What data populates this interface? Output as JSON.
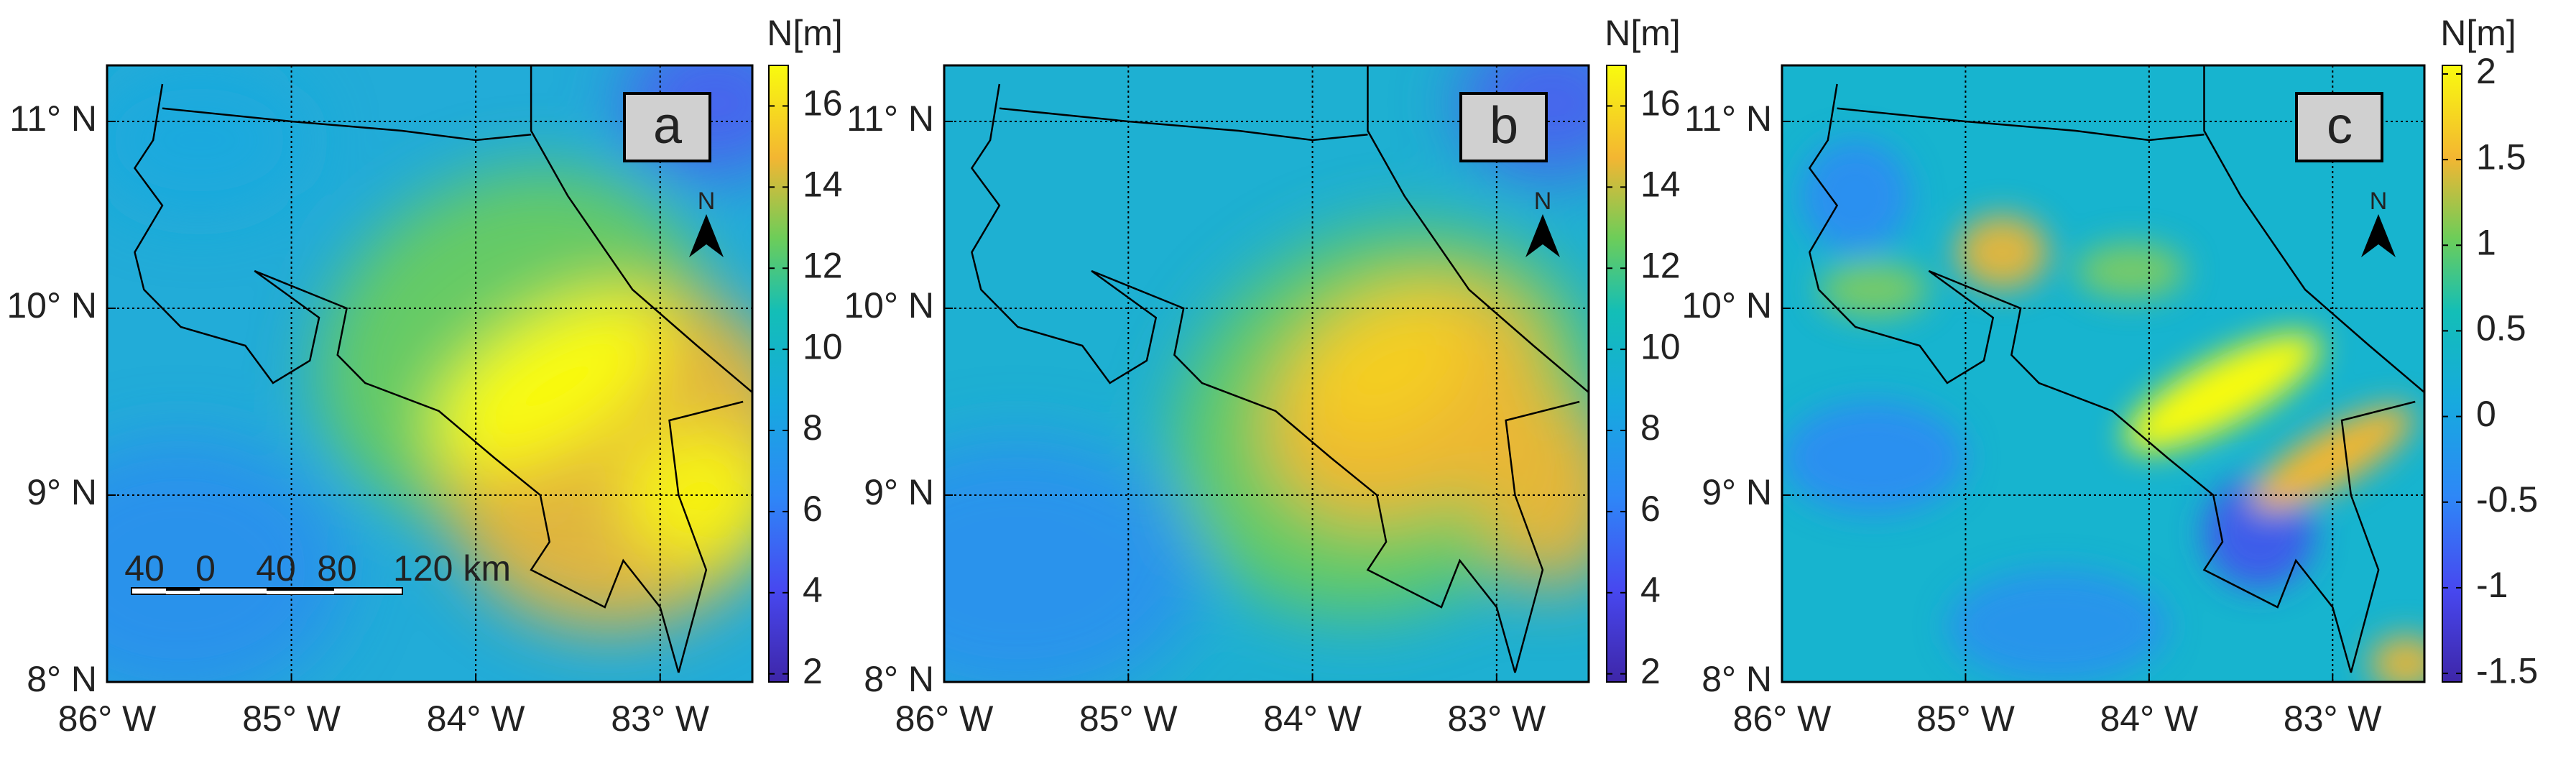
{
  "figure": {
    "xlim": [
      -86,
      -82.5
    ],
    "ylim": [
      8,
      11.3
    ],
    "xticks": [
      {
        "value": -86,
        "label": "86° W"
      },
      {
        "value": -85,
        "label": "85° W"
      },
      {
        "value": -84,
        "label": "84° W"
      },
      {
        "value": -83,
        "label": "83° W"
      }
    ],
    "yticks": [
      {
        "value": 8,
        "label": "8° N"
      },
      {
        "value": 9,
        "label": "9° N"
      },
      {
        "value": 10,
        "label": "10° N"
      },
      {
        "value": 11,
        "label": "11° N"
      }
    ],
    "north": "N",
    "scale_bar": {
      "labels": [
        "40",
        "0",
        "40",
        "80",
        "120 km"
      ]
    },
    "panels": [
      {
        "label": "a",
        "colorbar": {
          "title": "N[m]",
          "lim": [
            1.8,
            17
          ],
          "ticks": [
            2,
            4,
            6,
            8,
            10,
            12,
            14,
            16
          ]
        }
      },
      {
        "label": "b",
        "colorbar": {
          "title": "N[m]",
          "lim": [
            1.8,
            17
          ],
          "ticks": [
            2,
            4,
            6,
            8,
            10,
            12,
            14,
            16
          ]
        }
      },
      {
        "label": "c",
        "colorbar": {
          "title": "N[m]",
          "lim": [
            -1.55,
            2.05
          ],
          "ticks": [
            -1.5,
            -1,
            -0.5,
            0,
            0.5,
            1,
            1.5,
            2
          ]
        }
      }
    ]
  }
}
